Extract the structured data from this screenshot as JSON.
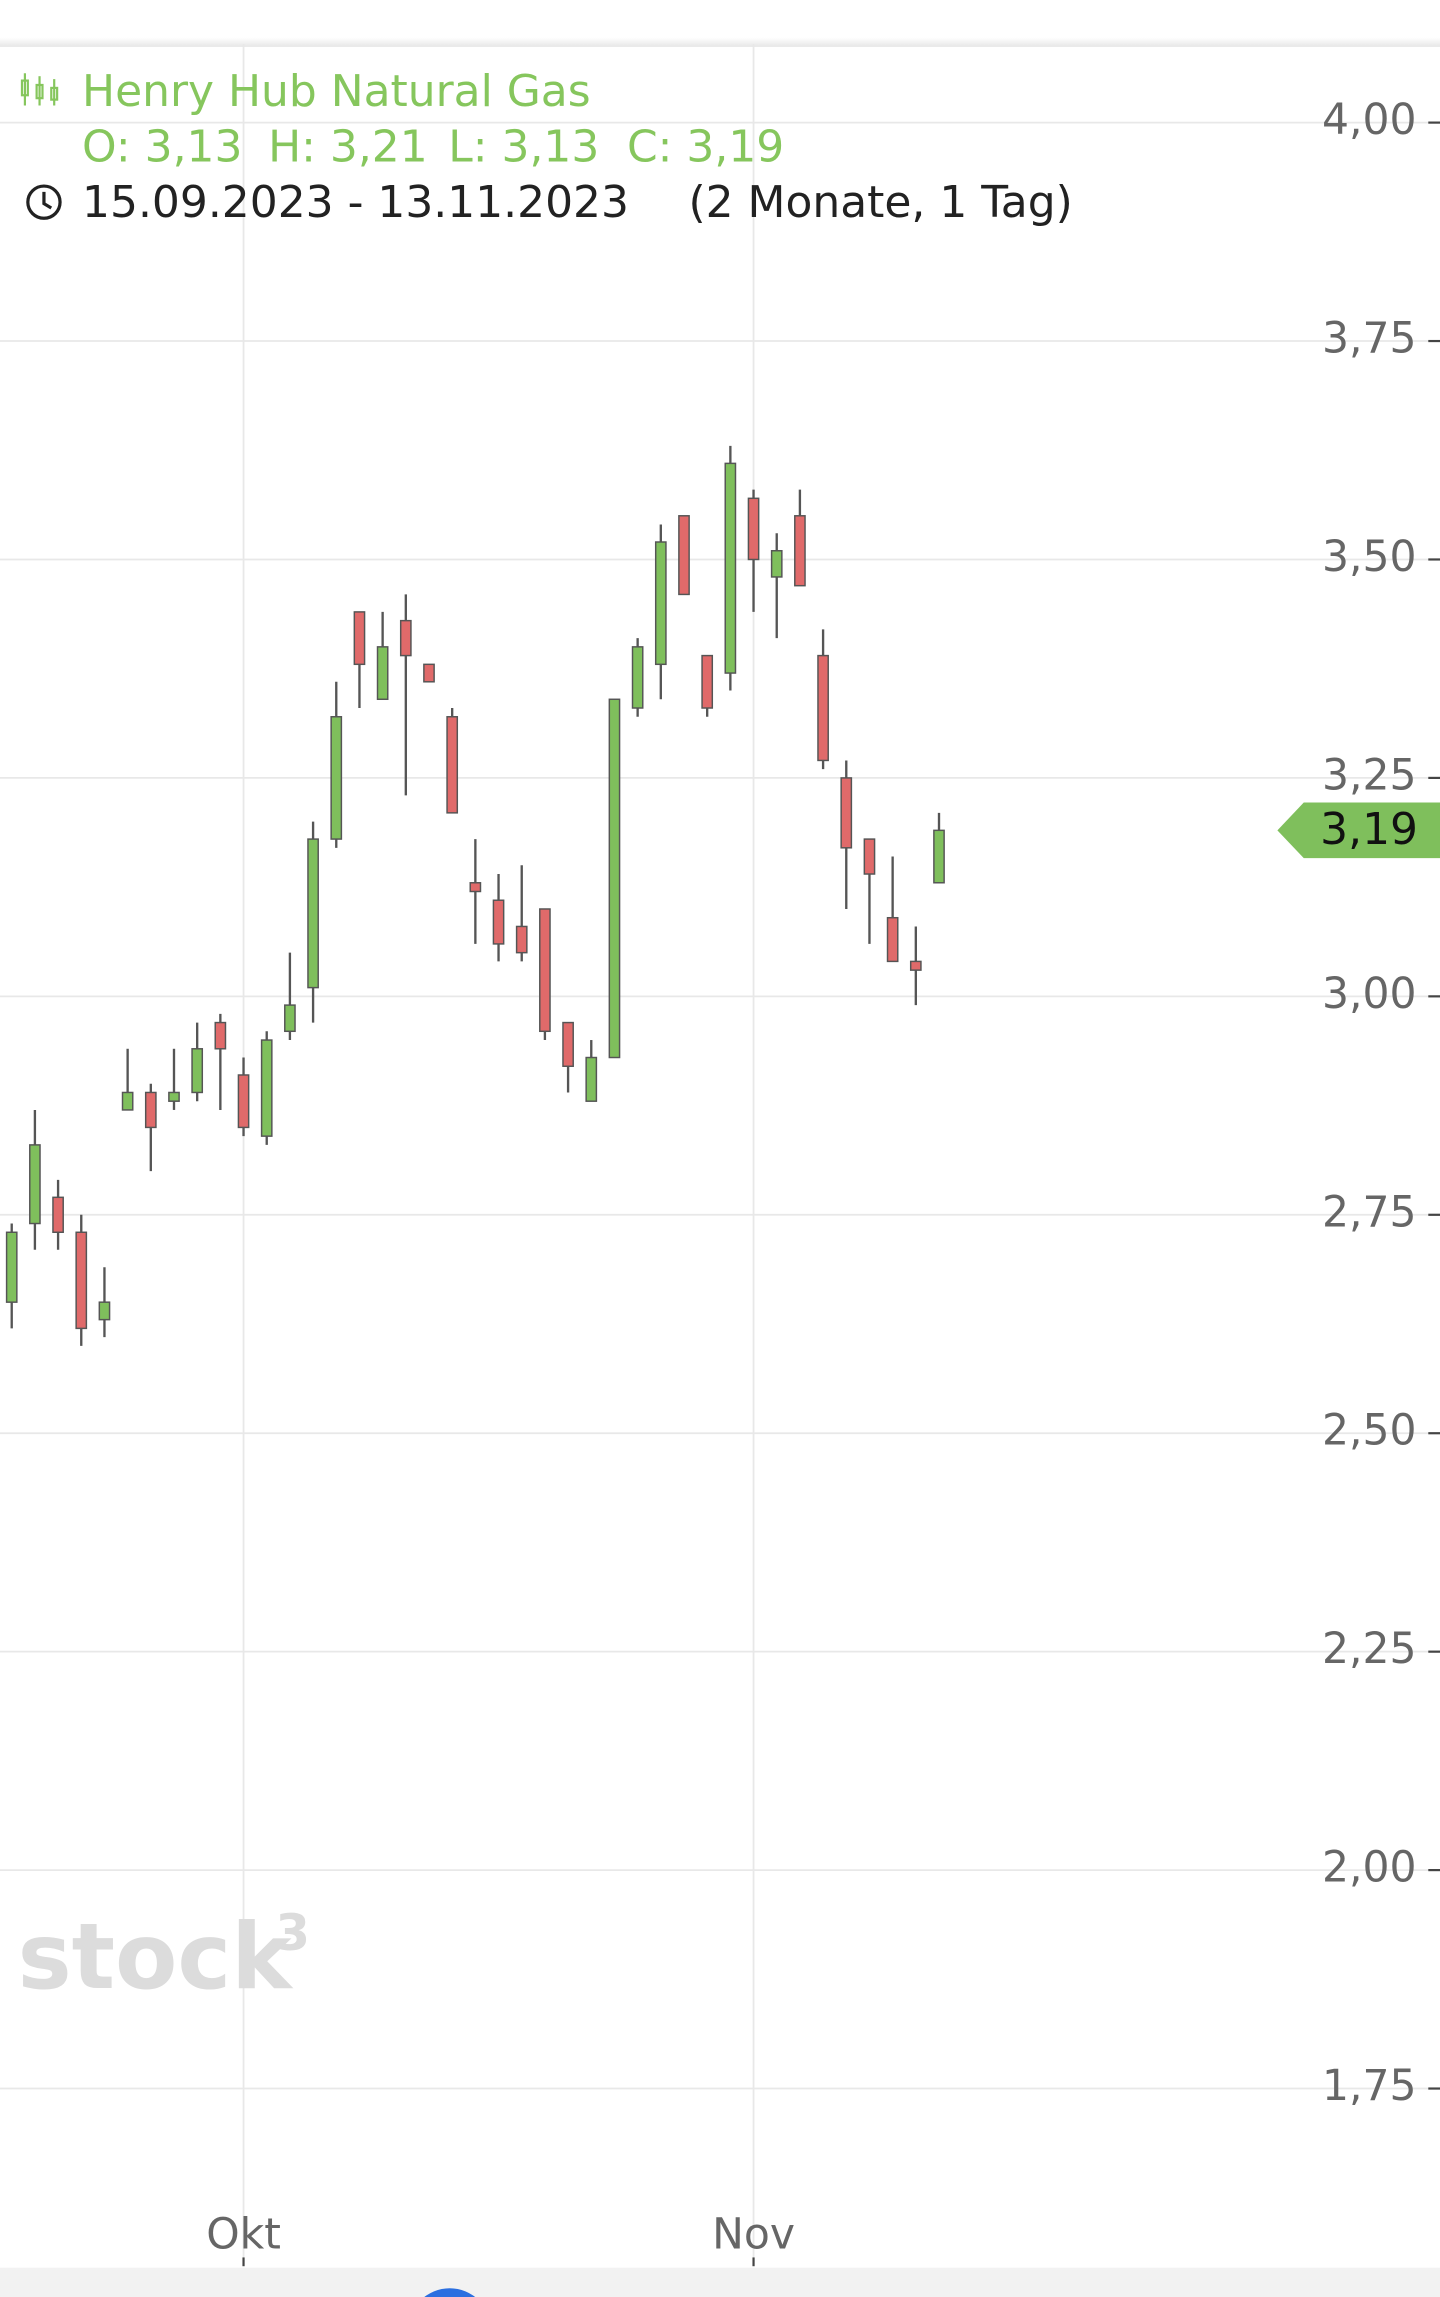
{
  "chart_data": {
    "type": "candlestick",
    "title": "Henry Hub Natural Gas",
    "ohlc_labels": [
      "O: 3,13",
      "H: 3,21",
      "L: 3,13",
      "C: 3,19"
    ],
    "date_range": "15.09.2023 - 13.11.2023",
    "period": "(2 Monate, 1 Tag)",
    "watermark": "stock",
    "watermark_sup": "3",
    "x": [
      null,
      null,
      null,
      null,
      null,
      null,
      null,
      null,
      null,
      null,
      "Okt",
      null,
      null,
      null,
      null,
      null,
      null,
      null,
      null,
      null,
      null,
      null,
      null,
      null,
      null,
      null,
      null,
      null,
      null,
      null,
      null,
      null,
      "Nov",
      null,
      null,
      null,
      null,
      null,
      null,
      null,
      null
    ],
    "open": [
      2.65,
      2.74,
      2.77,
      2.73,
      2.63,
      2.87,
      2.89,
      2.88,
      2.89,
      2.97,
      2.91,
      2.84,
      2.96,
      3.01,
      3.18,
      3.44,
      3.34,
      3.43,
      3.38,
      3.32,
      3.13,
      3.11,
      3.08,
      3.1,
      2.97,
      2.88,
      2.93,
      3.33,
      3.38,
      3.55,
      3.39,
      3.37,
      3.57,
      3.48,
      3.55,
      3.39,
      3.25,
      3.18,
      3.09,
      3.04,
      3.13
    ],
    "high": [
      2.74,
      2.87,
      2.79,
      2.75,
      2.69,
      2.94,
      2.9,
      2.94,
      2.97,
      2.98,
      2.93,
      2.96,
      3.05,
      3.2,
      3.36,
      3.44,
      3.44,
      3.46,
      3.38,
      3.33,
      3.18,
      3.14,
      3.15,
      3.1,
      2.97,
      2.95,
      3.34,
      3.41,
      3.54,
      3.55,
      3.39,
      3.63,
      3.58,
      3.53,
      3.58,
      3.42,
      3.27,
      3.18,
      3.16,
      3.08,
      3.21
    ],
    "low": [
      2.62,
      2.71,
      2.71,
      2.6,
      2.61,
      2.87,
      2.8,
      2.87,
      2.88,
      2.87,
      2.84,
      2.83,
      2.95,
      2.97,
      3.17,
      3.33,
      3.34,
      3.23,
      3.36,
      3.21,
      3.06,
      3.04,
      3.04,
      2.95,
      2.89,
      2.88,
      2.93,
      3.32,
      3.34,
      3.46,
      3.32,
      3.35,
      3.44,
      3.41,
      3.47,
      3.26,
      3.1,
      3.06,
      3.04,
      2.99,
      3.13
    ],
    "close": [
      2.73,
      2.83,
      2.73,
      2.62,
      2.65,
      2.89,
      2.85,
      2.89,
      2.94,
      2.94,
      2.85,
      2.95,
      2.99,
      3.18,
      3.32,
      3.38,
      3.4,
      3.39,
      3.36,
      3.21,
      3.12,
      3.06,
      3.05,
      2.96,
      2.92,
      2.93,
      3.34,
      3.4,
      3.52,
      3.46,
      3.33,
      3.61,
      3.5,
      3.51,
      3.47,
      3.27,
      3.17,
      3.14,
      3.04,
      3.03,
      3.19
    ],
    "up_color": "#7fbf5c",
    "down_color": "#e06a6a",
    "wick_color": "#555555",
    "title_color": "#86c65d",
    "last_price": {
      "value": 3.19,
      "label": "3,19"
    },
    "ylim": [
      1.55,
      4.09
    ],
    "yticks": [
      {
        "value": 4,
        "label": "4,00"
      },
      {
        "value": 3.75,
        "label": "3,75"
      },
      {
        "value": 3.5,
        "label": "3,50"
      },
      {
        "value": 3.25,
        "label": "3,25"
      },
      {
        "value": 3,
        "label": "3,00"
      },
      {
        "value": 2.75,
        "label": "2,75"
      },
      {
        "value": 2.5,
        "label": "2,50"
      },
      {
        "value": 2.25,
        "label": "2,25"
      },
      {
        "value": 2,
        "label": "2,00"
      },
      {
        "value": 1.75,
        "label": "1,75"
      }
    ],
    "grid": true
  }
}
